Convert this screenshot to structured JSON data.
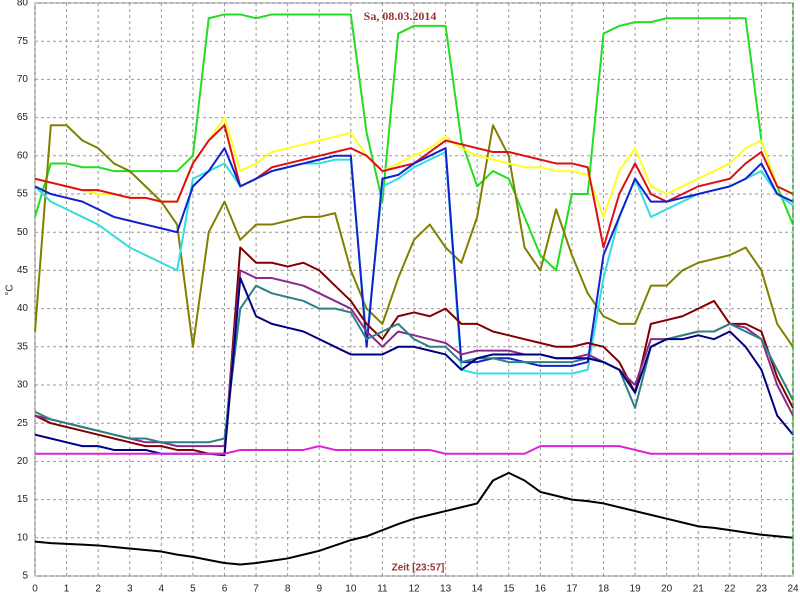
{
  "chart_data": {
    "type": "line",
    "title": "Sa, 08.03.2014",
    "xlabel": "Zeit [23:57]",
    "ylabel": "°C",
    "x": [
      0,
      0.5,
      1,
      1.5,
      2,
      2.5,
      3,
      3.5,
      4,
      4.5,
      5,
      5.5,
      6,
      6.5,
      7,
      7.5,
      8,
      8.5,
      9,
      9.5,
      10,
      10.5,
      11,
      11.5,
      12,
      12.5,
      13,
      13.5,
      14,
      14.5,
      15,
      15.5,
      16,
      16.5,
      17,
      17.5,
      18,
      18.5,
      19,
      19.5,
      20,
      20.5,
      21,
      21.5,
      22,
      22.5,
      23,
      23.5,
      24
    ],
    "xlim": [
      0,
      24
    ],
    "xticks": [
      0,
      1,
      2,
      3,
      4,
      5,
      6,
      7,
      8,
      9,
      10,
      11,
      12,
      13,
      14,
      15,
      16,
      17,
      18,
      19,
      20,
      21,
      22,
      23,
      24
    ],
    "ylim": [
      5,
      80
    ],
    "yticks": [
      5,
      10,
      15,
      20,
      25,
      30,
      35,
      40,
      45,
      50,
      55,
      60,
      65,
      70,
      75,
      80
    ],
    "grid": true,
    "series": [
      {
        "color": "#22dd22",
        "values": [
          52,
          59,
          59,
          58.5,
          58.5,
          58,
          58,
          58,
          58,
          58,
          60,
          78,
          78.5,
          78.5,
          78,
          78.5,
          78.5,
          78.5,
          78.5,
          78.5,
          78.5,
          63,
          54,
          76,
          77,
          77,
          77,
          62,
          56,
          58,
          57,
          52,
          47,
          45,
          55,
          55,
          76,
          77,
          77.5,
          77.5,
          78,
          78,
          78,
          78,
          78,
          78,
          62,
          56,
          51
        ]
      },
      {
        "color": "#808000",
        "values": [
          37,
          64,
          64,
          62,
          61,
          59,
          58,
          56,
          54,
          51,
          35,
          50,
          54,
          49,
          51,
          51,
          51.5,
          52,
          52,
          52.5,
          45,
          40,
          38,
          44,
          49,
          51,
          48,
          46,
          52,
          64,
          60,
          48,
          45,
          53,
          47,
          42,
          39,
          38,
          38,
          43,
          43,
          45,
          46,
          46.5,
          47,
          48,
          45,
          38,
          35
        ]
      },
      {
        "color": "#ffff22",
        "values": [
          57,
          56.5,
          56,
          55.5,
          55,
          55,
          54.5,
          54.5,
          54,
          54,
          59,
          62,
          65,
          58,
          59,
          60.5,
          61,
          61.5,
          62,
          62.5,
          63,
          60,
          58,
          59,
          60,
          61,
          62.5,
          61,
          60,
          59.5,
          59,
          58.5,
          58.5,
          58,
          58,
          57.5,
          52,
          58,
          61,
          56,
          55,
          56,
          57,
          58,
          59,
          61,
          62,
          56,
          55
        ]
      },
      {
        "color": "#dd1111",
        "values": [
          57,
          56.5,
          56,
          55.5,
          55.5,
          55,
          54.5,
          54.5,
          54,
          54,
          59,
          62,
          64,
          56,
          57,
          58.5,
          59,
          59.5,
          60,
          60.5,
          61,
          60,
          58,
          58.5,
          59,
          60.5,
          62,
          61.5,
          61,
          60.5,
          60.5,
          60,
          59.5,
          59,
          59,
          58.5,
          48,
          55,
          59,
          55,
          54,
          55,
          56,
          56.5,
          57,
          59,
          60.5,
          56,
          55
        ]
      },
      {
        "color": "#33dddd",
        "values": [
          56,
          54,
          53,
          52,
          51,
          49.5,
          48,
          47,
          46,
          45,
          57,
          58,
          59,
          56,
          57,
          58,
          58.5,
          59,
          59,
          59.5,
          59.5,
          36,
          56,
          57,
          58.5,
          59.5,
          60.5,
          32,
          31.5,
          31.5,
          31.5,
          31.5,
          31.5,
          31.5,
          31.5,
          32,
          44,
          52,
          57,
          52,
          53,
          54,
          55,
          55.5,
          56,
          57,
          58,
          55,
          53.5
        ]
      },
      {
        "color": "#1122cc",
        "values": [
          56,
          55,
          54.5,
          54,
          53,
          52,
          51.5,
          51,
          50.5,
          50,
          56,
          58,
          61,
          56,
          57,
          58,
          58.5,
          59,
          59.5,
          60,
          60,
          35,
          57,
          57.5,
          59,
          60,
          61,
          33,
          33,
          33.5,
          33.5,
          33,
          32.5,
          32.5,
          32.5,
          33,
          47,
          52,
          57,
          54,
          54,
          54.5,
          55,
          55.5,
          56,
          57,
          59,
          55,
          54
        ]
      },
      {
        "color": "#800000",
        "values": [
          26,
          25,
          24.5,
          24,
          23.5,
          23,
          22.5,
          22,
          22,
          21.5,
          21.5,
          21,
          21,
          48,
          46,
          46,
          45.5,
          46,
          45,
          43,
          41,
          38,
          36,
          39,
          39.5,
          39,
          40,
          38,
          38,
          37,
          36.5,
          36,
          35.5,
          35,
          35,
          35.5,
          35,
          33,
          29,
          38,
          38.5,
          39,
          40,
          41,
          38,
          38,
          37,
          31,
          27
        ]
      },
      {
        "color": "#8b2a8b",
        "values": [
          26,
          25.5,
          25,
          24.5,
          24,
          23.5,
          23,
          22.5,
          22.5,
          22,
          22,
          22,
          22,
          45,
          44,
          44,
          43.5,
          43,
          42,
          41,
          40,
          37,
          35,
          37,
          36.5,
          36,
          35.5,
          34,
          34.5,
          34.5,
          34.5,
          34,
          34,
          33.5,
          33.5,
          34,
          33,
          32,
          30,
          36,
          36,
          36.5,
          37,
          37,
          38,
          37.5,
          36,
          30,
          26
        ]
      },
      {
        "color": "#2f8080",
        "values": [
          26.5,
          25.5,
          25,
          24.5,
          24,
          23.5,
          23,
          23,
          22.5,
          22.5,
          22.5,
          22.5,
          23,
          40,
          43,
          42,
          41.5,
          41,
          40,
          40,
          39.5,
          36,
          37,
          38,
          36,
          35,
          35,
          33,
          33.5,
          33.5,
          33,
          33,
          33,
          33,
          33,
          33.5,
          33,
          32,
          27,
          35,
          36,
          36.5,
          37,
          37,
          38,
          37,
          36,
          32,
          28
        ]
      },
      {
        "color": "#000080",
        "values": [
          23.5,
          23,
          22.5,
          22,
          22,
          21.5,
          21.5,
          21.5,
          21,
          21,
          21,
          21,
          20.8,
          44,
          39,
          38,
          37.5,
          37,
          36,
          35,
          34,
          34,
          34,
          35,
          35,
          34.5,
          34,
          32,
          33.5,
          34,
          34,
          34,
          34,
          33.5,
          33.5,
          33.5,
          33,
          32,
          29,
          35,
          36,
          36,
          36.5,
          36,
          37,
          35,
          32,
          26,
          23.5
        ]
      },
      {
        "color": "#dd22dd",
        "values": [
          21,
          21,
          21,
          21,
          21,
          21,
          21,
          21,
          21,
          21,
          21,
          21,
          21,
          21.5,
          21.5,
          21.5,
          21.5,
          21.5,
          22,
          21.5,
          21.5,
          21.5,
          21.5,
          21.5,
          21.5,
          21.5,
          21,
          21,
          21,
          21,
          21,
          21,
          22,
          22,
          22,
          22,
          22,
          22,
          21.5,
          21,
          21,
          21,
          21,
          21,
          21,
          21,
          21,
          21,
          21
        ]
      },
      {
        "color": "#000000",
        "values": [
          9.5,
          9.3,
          9.2,
          9.1,
          9,
          8.8,
          8.6,
          8.4,
          8.2,
          7.8,
          7.5,
          7.1,
          6.7,
          6.5,
          6.7,
          7,
          7.3,
          7.8,
          8.3,
          9,
          9.7,
          10.2,
          11,
          11.8,
          12.5,
          13,
          13.5,
          14,
          14.5,
          17.5,
          18.5,
          17.5,
          16,
          15.5,
          15,
          14.8,
          14.5,
          14,
          13.5,
          13,
          12.5,
          12,
          11.5,
          11.3,
          11,
          10.7,
          10.4,
          10.2,
          10
        ]
      }
    ]
  }
}
